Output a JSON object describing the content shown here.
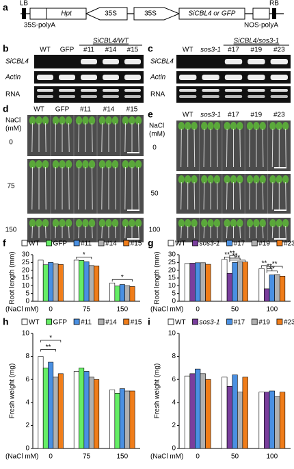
{
  "panel_a": {
    "label": "a",
    "lb": "LB",
    "rb": "RB",
    "hpt": "Hpt",
    "promoter_1": "35S",
    "promoter_2": "35S",
    "gene": "SiCBL4 or GFP",
    "polya_1": "35S-polyA",
    "polya_2": "NOS-polyA"
  },
  "panel_b": {
    "label": "b",
    "header": "SiCBL4/WT",
    "lanes": [
      "WT",
      "GFP",
      "#11",
      "#14",
      "#15"
    ],
    "rows": [
      "SiCBL4",
      "Actin",
      "RNA"
    ]
  },
  "panel_c": {
    "label": "c",
    "header": "SiCBL4/sos3-1",
    "lanes": [
      "WT",
      "sos3-1",
      "#17",
      "#19",
      "#23"
    ],
    "rows": [
      "SiCBL4",
      "Actin",
      "RNA"
    ]
  },
  "panel_d": {
    "label": "d",
    "lanes": [
      "WT",
      "GFP",
      "#11",
      "#14",
      "#15"
    ],
    "axis_label": [
      "NaCl",
      "(mM)"
    ],
    "rows": [
      "0",
      "75",
      "150"
    ]
  },
  "panel_e": {
    "label": "e",
    "lanes": [
      "WT",
      "sos3-1",
      "#17",
      "#19",
      "#23"
    ],
    "axis_label": [
      "NaCl",
      "(mM)"
    ],
    "rows": [
      "0",
      "50",
      "100"
    ]
  },
  "chart_data": [
    {
      "type": "bar",
      "label": "f",
      "ylabel": "Root length (mm)",
      "xlabel": "(NaCl mM)",
      "categories": [
        "0",
        "75",
        "150"
      ],
      "series": [
        {
          "name": "WT",
          "color": "#ffffff",
          "values": [
            26.5,
            26.5,
            11.8
          ]
        },
        {
          "name": "GFP",
          "color": "#66ee66",
          "values": [
            23.5,
            26.3,
            9.8
          ]
        },
        {
          "name": "#11",
          "color": "#4a90e2",
          "values": [
            25,
            25.5,
            10.8
          ]
        },
        {
          "name": "#14",
          "color": "#b0b0b0",
          "values": [
            24.2,
            23,
            10
          ]
        },
        {
          "name": "#15",
          "color": "#f07d1a",
          "values": [
            23.7,
            22.8,
            9.5
          ]
        }
      ],
      "ylim": [
        0,
        30
      ],
      "yticks": [
        0,
        5,
        10,
        15,
        20,
        25,
        30
      ],
      "annotations": [
        "*",
        "*"
      ]
    },
    {
      "type": "bar",
      "label": "g",
      "ylabel": "Root length (mm)",
      "xlabel": "(NaCl mM)",
      "categories": [
        "0",
        "50",
        "100"
      ],
      "series": [
        {
          "name": "WT",
          "color": "#ffffff",
          "values": [
            24.3,
            27,
            21
          ]
        },
        {
          "name": "sos3-1",
          "color": "#7a3f9d",
          "values": [
            24.5,
            18,
            8
          ]
        },
        {
          "name": "#17",
          "color": "#4a90e2",
          "values": [
            24.8,
            25,
            17
          ]
        },
        {
          "name": "#19",
          "color": "#b0b0b0",
          "values": [
            24.8,
            25.5,
            17.2
          ]
        },
        {
          "name": "#23",
          "color": "#f07d1a",
          "values": [
            23.8,
            25.3,
            16.2
          ]
        }
      ],
      "ylim": [
        0,
        30
      ],
      "yticks": [
        0,
        5,
        10,
        15,
        20,
        25,
        30
      ],
      "annotations": [
        "**",
        "**",
        "**",
        "**",
        "**",
        "**",
        "**",
        "**"
      ]
    },
    {
      "type": "bar",
      "label": "h",
      "ylabel": "Fresh weight (mg)",
      "xlabel": "(NaCl mM)",
      "categories": [
        "0",
        "75",
        "150"
      ],
      "series": [
        {
          "name": "WT",
          "color": "#ffffff",
          "values": [
            8,
            6.7,
            5.1
          ]
        },
        {
          "name": "GFP",
          "color": "#66ee66",
          "values": [
            7,
            7,
            4.8
          ]
        },
        {
          "name": "#11",
          "color": "#4a90e2",
          "values": [
            7.5,
            6.7,
            5.2
          ]
        },
        {
          "name": "#14",
          "color": "#b0b0b0",
          "values": [
            6.2,
            6.2,
            5
          ]
        },
        {
          "name": "#15",
          "color": "#f07d1a",
          "values": [
            6.5,
            6,
            5
          ]
        }
      ],
      "ylim": [
        0,
        10
      ],
      "yticks": [
        0,
        2,
        4,
        6,
        8,
        10
      ],
      "annotations": [
        "*",
        "**"
      ]
    },
    {
      "type": "bar",
      "label": "i",
      "ylabel": "Fresh weight (mg)",
      "xlabel": "(NaCl mM)",
      "categories": [
        "0",
        "50",
        "100"
      ],
      "series": [
        {
          "name": "WT",
          "color": "#ffffff",
          "values": [
            6.3,
            6.2,
            4.9
          ]
        },
        {
          "name": "sos3-1",
          "color": "#7a3f9d",
          "values": [
            6.5,
            5.4,
            4.9
          ]
        },
        {
          "name": "#17",
          "color": "#4a90e2",
          "values": [
            6.9,
            6.4,
            5
          ]
        },
        {
          "name": "#19",
          "color": "#b0b0b0",
          "values": [
            6.5,
            4.9,
            4.5
          ]
        },
        {
          "name": "#23",
          "color": "#f07d1a",
          "values": [
            6,
            6.2,
            4.9
          ]
        }
      ],
      "ylim": [
        0,
        10
      ],
      "yticks": [
        0,
        2,
        4,
        6,
        8,
        10
      ]
    }
  ]
}
